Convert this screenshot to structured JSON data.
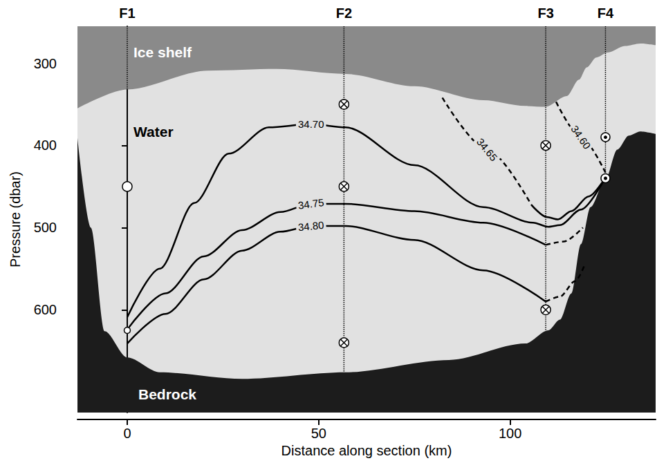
{
  "chart_data": {
    "type": "section",
    "x_label": "Distance along section (km)",
    "y_label": "Pressure (dbar)",
    "xlim": [
      -13,
      138
    ],
    "xticks": [
      0,
      50,
      100
    ],
    "ylim": [
      725,
      255
    ],
    "yticks": [
      300,
      400,
      500,
      600
    ],
    "grid": false,
    "water": {
      "label": "Water",
      "color": "#e1e1e1"
    },
    "ice_shelf": {
      "label": "Ice shelf",
      "color": "#8a8a8a",
      "x": [
        -13,
        0,
        21,
        39,
        57,
        75,
        93,
        104,
        109.3,
        114.8,
        118,
        120,
        122.5,
        125.5,
        130,
        134,
        138
      ],
      "y": [
        355,
        332,
        309,
        307,
        313,
        328,
        345,
        352,
        353,
        340,
        320,
        305,
        293,
        287,
        279,
        276,
        278
      ]
    },
    "bedrock": {
      "label": "Bedrock",
      "color": "#1c1c1c",
      "x": [
        -13,
        -9.5,
        -5.9,
        0,
        8.5,
        30,
        57,
        84,
        104,
        110,
        113,
        116,
        118.5,
        121,
        124.9,
        128,
        131,
        134,
        138
      ],
      "y": [
        391,
        500,
        626,
        658,
        676,
        684,
        676,
        661,
        641,
        625,
        612,
        580,
        520,
        475,
        441,
        405,
        388,
        383,
        386
      ]
    },
    "series": [
      {
        "name": "34.70",
        "color": "#000000",
        "segments": [
          {
            "line_style": "solid",
            "x": [
              0,
              8.5,
              17.5,
              26.5,
              37,
              48,
              57,
              75,
              93,
              106,
              110,
              113,
              118.5,
              124.9
            ],
            "y": [
              609,
              550,
              470,
              410,
              378,
              374,
              378,
              424,
              475,
              494,
              499,
              497,
              478,
              439
            ]
          }
        ]
      },
      {
        "name": "34.75",
        "color": "#000000",
        "segments": [
          {
            "line_style": "solid",
            "x": [
              0,
              10,
              20,
              30,
              40,
              48,
              57,
              75,
              93,
              109.3
            ],
            "y": [
              624,
              580,
              535,
              503,
              481,
              471,
              471,
              480,
              494,
              521
            ]
          },
          {
            "line_style": "dashed",
            "x": [
              109.3,
              114,
              119
            ],
            "y": [
              521,
              517,
              500
            ]
          }
        ]
      },
      {
        "name": "34.80",
        "color": "#000000",
        "segments": [
          {
            "line_style": "solid",
            "x": [
              0,
              10,
              20,
              30,
              40,
              48,
              57,
              75,
              93,
              109.3
            ],
            "y": [
              641,
              605,
              563,
              528,
              505,
              498,
              498,
              515,
              552,
              590
            ]
          },
          {
            "line_style": "dashed",
            "x": [
              109.3,
              113,
              117,
              119.5
            ],
            "y": [
              590,
              584,
              565,
              545
            ]
          }
        ]
      },
      {
        "name": "34.65",
        "color": "#000000",
        "segments": [
          {
            "line_style": "dashed",
            "x": [
              82.3,
              94,
              105.5
            ],
            "y": [
              342,
              405,
              472
            ]
          },
          {
            "line_style": "solid",
            "x": [
              105.5,
              109.5,
              112.5,
              116,
              120.5,
              124.9
            ],
            "y": [
              472,
              487,
              490,
              480,
              462,
              439
            ]
          }
        ]
      },
      {
        "name": "34.60",
        "color": "#000000",
        "segments": [
          {
            "line_style": "dashed",
            "x": [
              112,
              118.5,
              124.9
            ],
            "y": [
              347,
              390,
              433
            ]
          }
        ]
      }
    ],
    "moorings": [
      {
        "name": "F1",
        "x": 0,
        "bottom": 658,
        "instruments": [
          {
            "pressure": 450,
            "marker": "circle"
          },
          {
            "pressure": 625,
            "marker": "small_circle"
          }
        ]
      },
      {
        "name": "F2",
        "x": 56.6,
        "bottom": 676,
        "instruments": [
          {
            "pressure": 350,
            "marker": "cross"
          },
          {
            "pressure": 450,
            "marker": "cross"
          },
          {
            "pressure": 640,
            "marker": "cross"
          }
        ]
      },
      {
        "name": "F3",
        "x": 109.3,
        "bottom": 625,
        "instruments": [
          {
            "pressure": 400,
            "marker": "cross"
          },
          {
            "pressure": 600,
            "marker": "cross"
          }
        ]
      },
      {
        "name": "F4",
        "x": 124.9,
        "bottom": 441,
        "instruments": [
          {
            "pressure": 390,
            "marker": "dot"
          },
          {
            "pressure": 440,
            "marker": "dot"
          }
        ]
      }
    ]
  }
}
